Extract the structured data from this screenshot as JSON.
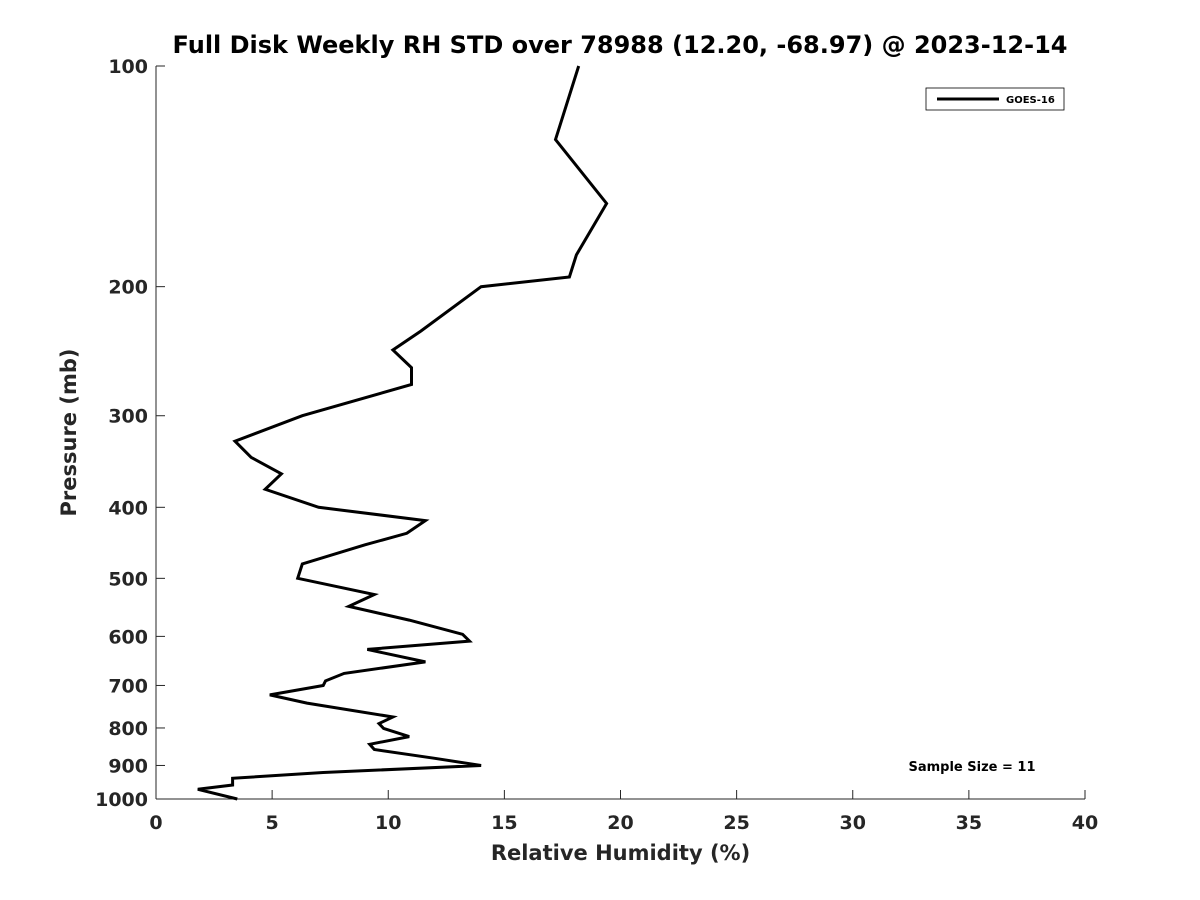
{
  "chart_data": {
    "type": "line",
    "title": "Full Disk Weekly RH STD over 78988 (12.20, -68.97) @ 2023-12-14",
    "xlabel": "Relative Humidity (%)",
    "ylabel": "Pressure (mb)",
    "xlim": [
      0,
      40
    ],
    "ylim": [
      100,
      1000
    ],
    "y_scale": "log",
    "y_reversed": true,
    "grid": false,
    "x_ticks": [
      "0",
      "5",
      "10",
      "15",
      "20",
      "25",
      "30",
      "35",
      "40"
    ],
    "y_ticks": [
      "100",
      "200",
      "300",
      "400",
      "500",
      "600",
      "700",
      "800",
      "900",
      "1000"
    ],
    "legend_position": "top-right",
    "annotation": "Sample Size = 11",
    "series": [
      {
        "name": "GOES-16",
        "color": "#000000",
        "points": [
          [
            18.2,
            100
          ],
          [
            17.2,
            126
          ],
          [
            19.4,
            154
          ],
          [
            18.1,
            181
          ],
          [
            17.8,
            194
          ],
          [
            14.0,
            200
          ],
          [
            11.4,
            230
          ],
          [
            10.2,
            244
          ],
          [
            11.0,
            258
          ],
          [
            11.0,
            272
          ],
          [
            6.3,
            300
          ],
          [
            3.4,
            325
          ],
          [
            4.1,
            342
          ],
          [
            5.4,
            360
          ],
          [
            4.7,
            378
          ],
          [
            7.0,
            400
          ],
          [
            11.6,
            417
          ],
          [
            10.8,
            434
          ],
          [
            9.0,
            450
          ],
          [
            6.3,
            478
          ],
          [
            6.1,
            500
          ],
          [
            9.4,
            526
          ],
          [
            8.3,
            546
          ],
          [
            10.9,
            570
          ],
          [
            13.2,
            596
          ],
          [
            13.5,
            609
          ],
          [
            9.1,
            625
          ],
          [
            11.6,
            650
          ],
          [
            8.1,
            674
          ],
          [
            7.3,
            690
          ],
          [
            7.2,
            700
          ],
          [
            4.9,
            721
          ],
          [
            6.5,
            740
          ],
          [
            10.2,
            773
          ],
          [
            9.6,
            789
          ],
          [
            9.8,
            801
          ],
          [
            10.9,
            822
          ],
          [
            9.2,
            842
          ],
          [
            9.4,
            856
          ],
          [
            12.0,
            880
          ],
          [
            14.0,
            900
          ],
          [
            7.2,
            920
          ],
          [
            3.3,
            937
          ],
          [
            3.3,
            957
          ],
          [
            1.8,
            970
          ],
          [
            3.5,
            1000
          ]
        ]
      }
    ]
  }
}
